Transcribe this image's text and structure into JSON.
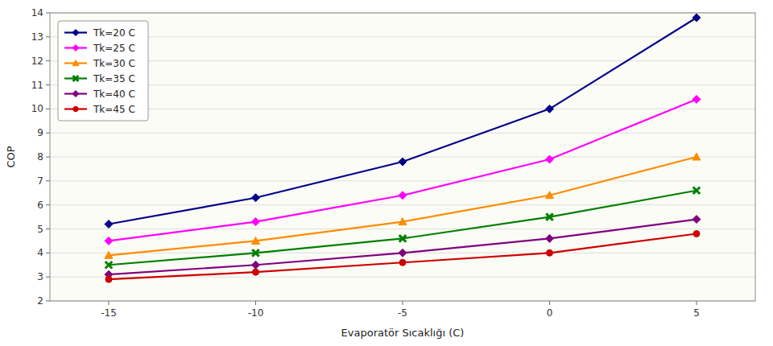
{
  "chart_data": {
    "type": "line",
    "xlabel": "Evaporatör Sıcaklığı (C)",
    "ylabel": "COP",
    "x": [
      -15,
      -10,
      -5,
      0,
      5
    ],
    "series": [
      {
        "name": "Tk=20 C",
        "color": "#00008B",
        "marker": "diamond",
        "values": [
          5.2,
          6.3,
          7.8,
          10.0,
          13.8
        ]
      },
      {
        "name": "Tk=25 C",
        "color": "#FF00FF",
        "marker": "diamond",
        "values": [
          4.5,
          5.3,
          6.4,
          7.9,
          10.4
        ]
      },
      {
        "name": "Tk=30 C",
        "color": "#FF8C00",
        "marker": "triangle",
        "values": [
          3.9,
          4.5,
          5.3,
          6.4,
          8.0
        ]
      },
      {
        "name": "Tk=35 C",
        "color": "#008000",
        "marker": "x",
        "values": [
          3.5,
          4.0,
          4.6,
          5.5,
          6.6
        ]
      },
      {
        "name": "Tk=40 C",
        "color": "#800080",
        "marker": "diamond",
        "values": [
          3.1,
          3.5,
          4.0,
          4.6,
          5.4
        ]
      },
      {
        "name": "Tk=45 C",
        "color": "#CC0000",
        "marker": "circle",
        "values": [
          2.9,
          3.2,
          3.6,
          4.0,
          4.8
        ]
      }
    ],
    "xlim": [
      -17,
      7
    ],
    "ylim": [
      2,
      14
    ],
    "xticks": [
      -15,
      -10,
      -5,
      0,
      5
    ],
    "yticks": [
      2,
      3,
      4,
      5,
      6,
      7,
      8,
      9,
      10,
      11,
      12,
      13,
      14
    ],
    "grid": true,
    "legend": "upper left"
  }
}
